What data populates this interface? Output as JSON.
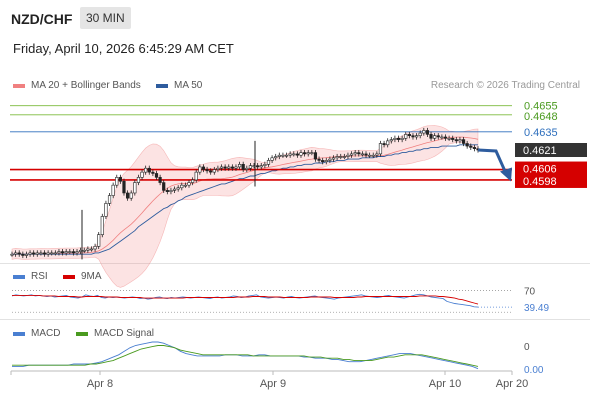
{
  "header": {
    "symbol": "NZD/CHF",
    "timeframe": "30 MIN",
    "datetime": "Friday, April 10, 2026 6:45:29 AM CET",
    "copyright": "Research © 2026 Trading Central"
  },
  "legend": {
    "ma20_label": "MA 20 + Bollinger Bands",
    "ma50_label": "MA 50",
    "rsi_label": "RSI",
    "rsi_ma_label": "9MA",
    "macd_label": "MACD",
    "macd_signal_label": "MACD Signal"
  },
  "colors": {
    "bollinger": "#f08080",
    "ma50": "#2e5c9e",
    "resistance": "#7cba3c",
    "pivot": "#2e6fbd",
    "support": "#d50000",
    "candle": "#222222",
    "price_tag": "#333333"
  },
  "chart_data": [
    {
      "type": "candlestick",
      "x_ticks": [
        "Apr 8",
        "Apr 9",
        "Apr 10",
        "Apr 20"
      ],
      "ylim": [
        0.4535,
        0.4664
      ],
      "levels": [
        {
          "label": "0.4655",
          "value": 0.4655,
          "kind": "resistance"
        },
        {
          "label": "0.4648",
          "value": 0.4648,
          "kind": "resistance"
        },
        {
          "label": "0.4635",
          "value": 0.4635,
          "kind": "pivot"
        },
        {
          "label": "0.4621",
          "value": 0.4621,
          "kind": "last"
        },
        {
          "label": "0.4606",
          "value": 0.4606,
          "kind": "support"
        },
        {
          "label": "0.4598",
          "value": 0.4598,
          "kind": "support"
        }
      ],
      "close": [
        0.4541,
        0.4542,
        0.4541,
        0.454,
        0.4541,
        0.4542,
        0.4541,
        0.4542,
        0.4542,
        0.4541,
        0.4542,
        0.4542,
        0.4542,
        0.4543,
        0.4542,
        0.4543,
        0.4543,
        0.4542,
        0.4543,
        0.4544,
        0.4544,
        0.4545,
        0.4545,
        0.4547,
        0.4556,
        0.457,
        0.458,
        0.4586,
        0.4594,
        0.46,
        0.4597,
        0.4588,
        0.4584,
        0.4588,
        0.4596,
        0.46,
        0.4604,
        0.4607,
        0.4604,
        0.4603,
        0.46,
        0.4596,
        0.459,
        0.4589,
        0.459,
        0.4591,
        0.4592,
        0.4594,
        0.4594,
        0.4596,
        0.4598,
        0.4604,
        0.4608,
        0.4606,
        0.4605,
        0.4604,
        0.4606,
        0.4607,
        0.4608,
        0.4607,
        0.4608,
        0.4607,
        0.4608,
        0.461,
        0.4606,
        0.4607,
        0.4609,
        0.4609,
        0.4608,
        0.4609,
        0.461,
        0.4613,
        0.4615,
        0.4616,
        0.4617,
        0.4617,
        0.4617,
        0.4618,
        0.4618,
        0.4617,
        0.4619,
        0.4618,
        0.4619,
        0.4619,
        0.4614,
        0.4613,
        0.4612,
        0.4613,
        0.4614,
        0.4615,
        0.4616,
        0.4616,
        0.4616,
        0.4617,
        0.4618,
        0.4619,
        0.4618,
        0.4618,
        0.4617,
        0.4617,
        0.4617,
        0.4618,
        0.4626,
        0.4625,
        0.4628,
        0.4629,
        0.463,
        0.4629,
        0.463,
        0.4633,
        0.4632,
        0.4631,
        0.4632,
        0.4634,
        0.4636,
        0.4633,
        0.463,
        0.4632,
        0.4631,
        0.4631,
        0.463,
        0.463,
        0.4629,
        0.4628,
        0.4629,
        0.4626,
        0.4624,
        0.4623,
        0.4622,
        0.4621
      ],
      "ma50": [
        0.4541,
        0.4541,
        0.4541,
        0.4541,
        0.4541,
        0.4541,
        0.4541,
        0.4541,
        0.4541,
        0.4541,
        0.4541,
        0.4541,
        0.4541,
        0.4541,
        0.4541,
        0.4541,
        0.4541,
        0.4541,
        0.4541,
        0.4541,
        0.4541,
        0.4541,
        0.4541,
        0.4542,
        0.4542,
        0.4543,
        0.4544,
        0.4545,
        0.4547,
        0.4549,
        0.4551,
        0.4553,
        0.4555,
        0.4557,
        0.4559,
        0.4562,
        0.4564,
        0.4566,
        0.4568,
        0.457,
        0.4572,
        0.4574,
        0.4576,
        0.4577,
        0.4579,
        0.458,
        0.4582,
        0.4583,
        0.4585,
        0.4586,
        0.4587,
        0.4588,
        0.4589,
        0.459,
        0.4591,
        0.4592,
        0.4593,
        0.4594,
        0.4595,
        0.4595,
        0.4596,
        0.4597,
        0.4598,
        0.4599,
        0.4599,
        0.46,
        0.4601,
        0.4601,
        0.4602,
        0.4603,
        0.4603,
        0.4604,
        0.4605,
        0.4605,
        0.4606,
        0.4607,
        0.4607,
        0.4608,
        0.4608,
        0.4609,
        0.4609,
        0.461,
        0.461,
        0.461,
        0.4611,
        0.4611,
        0.4611,
        0.4612,
        0.4612,
        0.4612,
        0.4613,
        0.4613,
        0.4613,
        0.4614,
        0.4614,
        0.4614,
        0.4614,
        0.4615,
        0.4615,
        0.4615,
        0.4615,
        0.4616,
        0.4616,
        0.4616,
        0.4617,
        0.4617,
        0.4618,
        0.4618,
        0.4619,
        0.4619,
        0.462,
        0.462,
        0.4621,
        0.4621,
        0.4622,
        0.4622,
        0.4623,
        0.4623,
        0.4623,
        0.4624,
        0.4624,
        0.4624,
        0.4624,
        0.4624,
        0.4625,
        0.4625,
        0.4625,
        0.4625,
        0.4625,
        0.4625
      ]
    },
    {
      "type": "line",
      "name": "RSI",
      "ylim": [
        25,
        80
      ],
      "reference_levels": [
        70,
        30
      ],
      "ticks": [
        "70",
        "39.49"
      ],
      "series": [
        {
          "name": "RSI",
          "values": [
            60,
            62,
            61,
            60,
            61,
            62,
            60,
            61,
            60,
            59,
            60,
            58,
            59,
            60,
            61,
            58,
            57,
            56,
            58,
            62,
            60,
            59,
            61,
            57,
            56,
            58,
            57,
            58,
            57,
            56,
            57,
            58,
            57,
            55,
            56,
            54,
            55,
            57,
            58,
            56,
            55,
            57,
            56,
            57,
            58,
            57,
            56,
            57,
            58,
            57,
            56,
            55,
            57,
            58,
            56,
            57,
            58,
            60,
            59,
            57,
            58,
            60,
            61,
            62,
            58,
            57,
            56,
            57,
            58,
            57,
            56,
            58,
            59,
            57,
            56,
            57,
            58,
            59,
            60,
            58,
            57,
            56,
            55,
            54,
            56,
            57,
            58,
            59,
            60,
            61,
            62,
            60,
            59,
            58,
            57,
            58,
            60,
            61,
            59,
            58,
            57,
            56,
            58,
            60,
            62,
            63,
            62,
            60,
            58,
            57,
            56,
            55,
            50,
            48,
            46,
            45,
            44,
            43,
            42,
            40,
            39.49
          ]
        },
        {
          "name": "9MA",
          "values": [
            61,
            61,
            61,
            61,
            61,
            61,
            61,
            61,
            60,
            60,
            60,
            60,
            59,
            59,
            59,
            59,
            59,
            58,
            58,
            59,
            59,
            59,
            59,
            59,
            58,
            58,
            58,
            58,
            57,
            57,
            57,
            57,
            57,
            57,
            56,
            56,
            56,
            56,
            56,
            56,
            56,
            56,
            56,
            56,
            56,
            57,
            57,
            57,
            57,
            57,
            57,
            57,
            57,
            57,
            57,
            57,
            57,
            57,
            58,
            58,
            58,
            58,
            59,
            59,
            59,
            59,
            58,
            58,
            58,
            58,
            57,
            57,
            57,
            57,
            57,
            57,
            57,
            58,
            58,
            58,
            58,
            58,
            58,
            57,
            57,
            57,
            57,
            57,
            57,
            58,
            58,
            59,
            59,
            59,
            59,
            59,
            59,
            59,
            59,
            59,
            59,
            59,
            59,
            59,
            59,
            60,
            60,
            60,
            60,
            60,
            59,
            59,
            58,
            57,
            56,
            54,
            53,
            51,
            49,
            47,
            45
          ]
        }
      ]
    },
    {
      "type": "line",
      "name": "MACD",
      "ticks": [
        "0",
        "0.00"
      ],
      "series": [
        {
          "name": "MACD",
          "values": [
            0.2,
            0.2,
            0.2,
            0.3,
            0.3,
            0.3,
            0.3,
            0.3,
            0.3,
            0.3,
            0.3,
            0.4,
            0.4,
            0.4,
            0.4,
            0.5,
            0.6,
            0.8,
            1.0,
            1.2,
            1.5,
            1.8,
            2.0,
            2.1,
            2.2,
            2.3,
            2.3,
            2.2,
            2.0,
            1.8,
            1.5,
            1.3,
            1.2,
            1.1,
            1.1,
            1.1,
            1.1,
            1.1,
            1.2,
            1.2,
            1.2,
            1.1,
            1.1,
            1.1,
            1.2,
            1.2,
            1.1,
            1.1,
            1.1,
            1.1,
            1.1,
            1.1,
            1.0,
            1.0,
            0.9,
            0.9,
            0.9,
            0.8,
            0.8,
            0.7,
            0.6,
            0.6,
            0.6,
            0.7,
            0.8,
            0.9,
            1.0,
            1.1,
            1.2,
            1.3,
            1.3,
            1.3,
            1.2,
            1.1,
            1.0,
            0.9,
            0.8,
            0.7,
            0.6,
            0.5,
            0.4,
            0.3,
            0.2,
            0.0
          ]
        },
        {
          "name": "MACD Signal",
          "values": [
            0.3,
            0.3,
            0.3,
            0.3,
            0.3,
            0.3,
            0.3,
            0.3,
            0.3,
            0.3,
            0.3,
            0.3,
            0.3,
            0.3,
            0.4,
            0.4,
            0.5,
            0.6,
            0.7,
            0.9,
            1.1,
            1.3,
            1.5,
            1.7,
            1.8,
            1.9,
            2.0,
            2.0,
            1.9,
            1.8,
            1.6,
            1.5,
            1.4,
            1.3,
            1.2,
            1.2,
            1.2,
            1.2,
            1.2,
            1.2,
            1.2,
            1.2,
            1.2,
            1.1,
            1.1,
            1.1,
            1.1,
            1.1,
            1.1,
            1.1,
            1.1,
            1.1,
            1.1,
            1.0,
            1.0,
            1.0,
            0.9,
            0.9,
            0.9,
            0.8,
            0.8,
            0.7,
            0.7,
            0.7,
            0.7,
            0.8,
            0.9,
            1.0,
            1.0,
            1.1,
            1.2,
            1.2,
            1.2,
            1.2,
            1.1,
            1.0,
            0.9,
            0.8,
            0.7,
            0.6,
            0.5,
            0.4,
            0.3,
            0.2
          ]
        }
      ]
    }
  ]
}
